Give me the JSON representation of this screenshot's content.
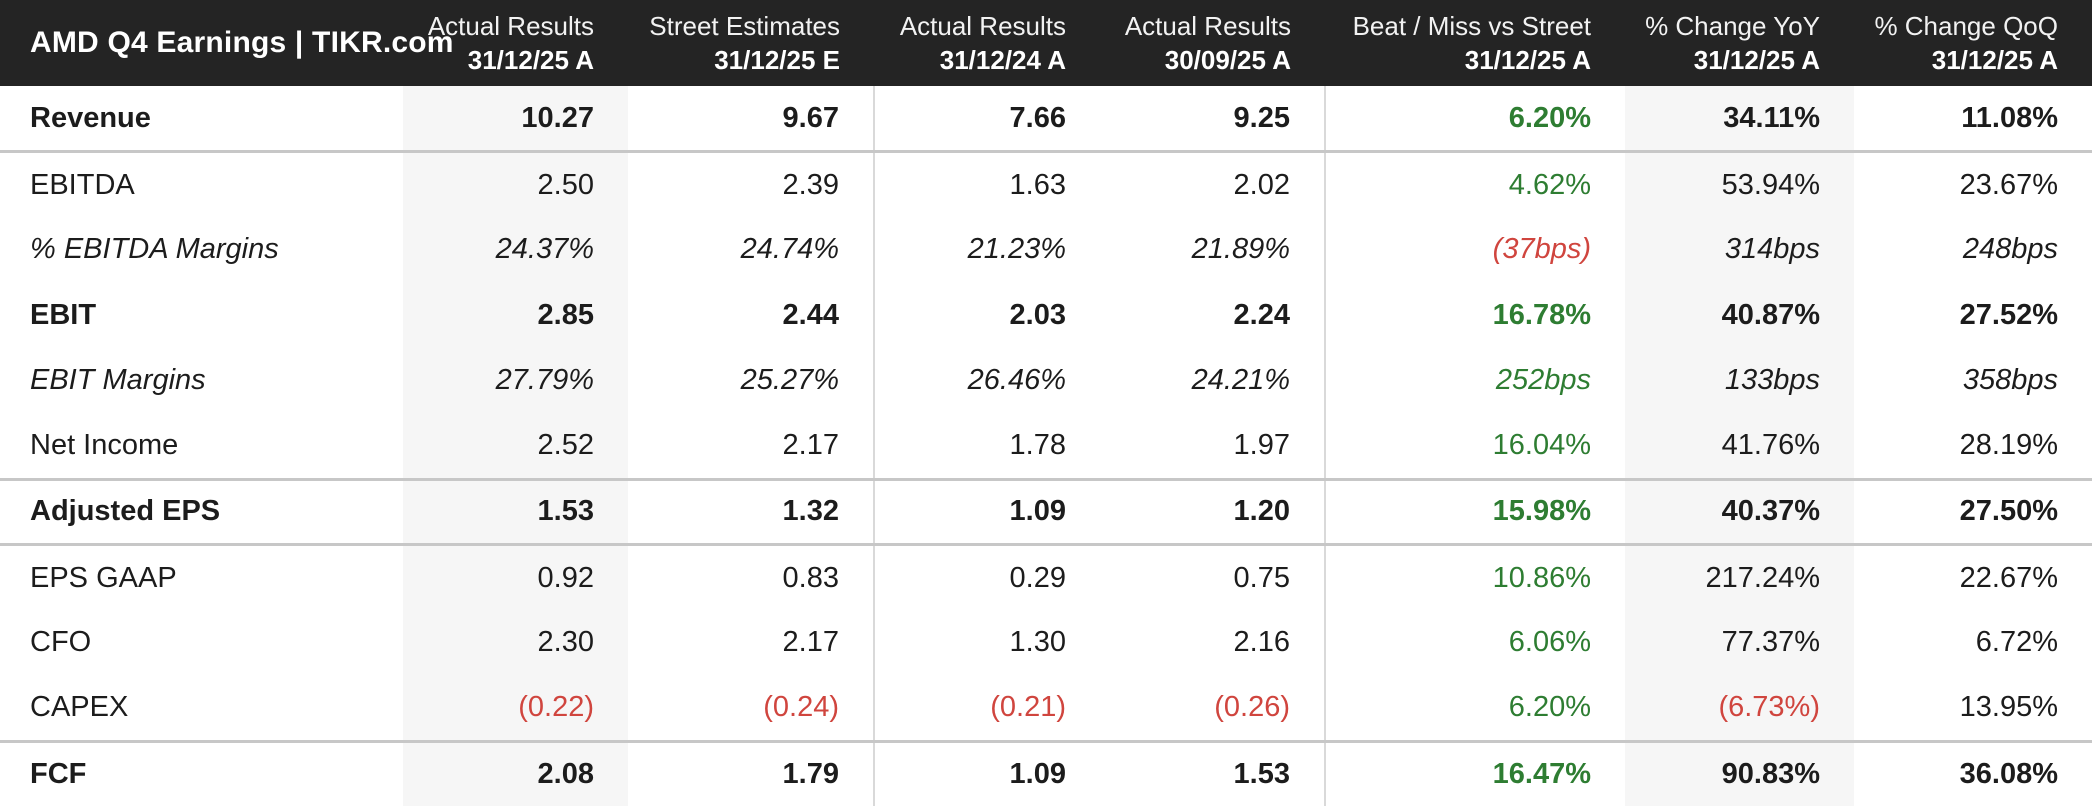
{
  "colors": {
    "positive_green": "#2e7d32",
    "negative_red": "#d0453e",
    "header_bg": "#242424",
    "col_shade": "#f6f6f6"
  },
  "chart_data": {
    "type": "table",
    "title": "AMD Q4 Earnings | TIKR.com",
    "columns": [
      {
        "label": "Actual Results",
        "date": "31/12/25 A"
      },
      {
        "label": "Street Estimates",
        "date": "31/12/25 E"
      },
      {
        "label": "Actual Results",
        "date": "31/12/24 A"
      },
      {
        "label": "Actual Results",
        "date": "30/09/25 A"
      },
      {
        "label": "Beat / Miss vs Street",
        "date": "31/12/25 A"
      },
      {
        "label": "% Change YoY",
        "date": "31/12/25 A"
      },
      {
        "label": "% Change QoQ",
        "date": "31/12/25 A"
      }
    ],
    "rows": [
      {
        "label": "Revenue",
        "style": "bold",
        "values": [
          "10.27",
          "9.67",
          "7.66",
          "9.25",
          "6.20%",
          "34.11%",
          "11.08%"
        ],
        "variants": [
          "",
          "",
          "",
          "",
          "green",
          "",
          ""
        ]
      },
      {
        "label": "EBITDA",
        "style": "normal",
        "values": [
          "2.50",
          "2.39",
          "1.63",
          "2.02",
          "4.62%",
          "53.94%",
          "23.67%"
        ],
        "variants": [
          "",
          "",
          "",
          "",
          "green",
          "",
          ""
        ]
      },
      {
        "label": "% EBITDA Margins",
        "style": "italic",
        "values": [
          "24.37%",
          "24.74%",
          "21.23%",
          "21.89%",
          "(37bps)",
          "314bps",
          "248bps"
        ],
        "variants": [
          "",
          "",
          "",
          "",
          "red",
          "",
          ""
        ]
      },
      {
        "label": "EBIT",
        "style": "bold",
        "values": [
          "2.85",
          "2.44",
          "2.03",
          "2.24",
          "16.78%",
          "40.87%",
          "27.52%"
        ],
        "variants": [
          "",
          "",
          "",
          "",
          "green",
          "",
          ""
        ]
      },
      {
        "label": "EBIT Margins",
        "style": "italic",
        "values": [
          "27.79%",
          "25.27%",
          "26.46%",
          "24.21%",
          "252bps",
          "133bps",
          "358bps"
        ],
        "variants": [
          "",
          "",
          "",
          "",
          "green",
          "",
          ""
        ]
      },
      {
        "label": "Net Income",
        "style": "normal",
        "values": [
          "2.52",
          "2.17",
          "1.78",
          "1.97",
          "16.04%",
          "41.76%",
          "28.19%"
        ],
        "variants": [
          "",
          "",
          "",
          "",
          "green",
          "",
          ""
        ]
      },
      {
        "label": "Adjusted EPS",
        "style": "bold",
        "values": [
          "1.53",
          "1.32",
          "1.09",
          "1.20",
          "15.98%",
          "40.37%",
          "27.50%"
        ],
        "variants": [
          "",
          "",
          "",
          "",
          "green",
          "",
          ""
        ]
      },
      {
        "label": "EPS GAAP",
        "style": "normal",
        "values": [
          "0.92",
          "0.83",
          "0.29",
          "0.75",
          "10.86%",
          "217.24%",
          "22.67%"
        ],
        "variants": [
          "",
          "",
          "",
          "",
          "green",
          "",
          ""
        ]
      },
      {
        "label": "CFO",
        "style": "normal",
        "values": [
          "2.30",
          "2.17",
          "1.30",
          "2.16",
          "6.06%",
          "77.37%",
          "6.72%"
        ],
        "variants": [
          "",
          "",
          "",
          "",
          "green",
          "",
          ""
        ]
      },
      {
        "label": "CAPEX",
        "style": "normal",
        "values": [
          "(0.22)",
          "(0.24)",
          "(0.21)",
          "(0.26)",
          "6.20%",
          "(6.73%)",
          "13.95%"
        ],
        "variants": [
          "red",
          "red",
          "red",
          "red",
          "green",
          "red",
          ""
        ]
      },
      {
        "label": "FCF",
        "style": "bold",
        "values": [
          "2.08",
          "1.79",
          "1.09",
          "1.53",
          "16.47%",
          "90.83%",
          "36.08%"
        ],
        "variants": [
          "",
          "",
          "",
          "",
          "green",
          "",
          ""
        ]
      }
    ]
  }
}
